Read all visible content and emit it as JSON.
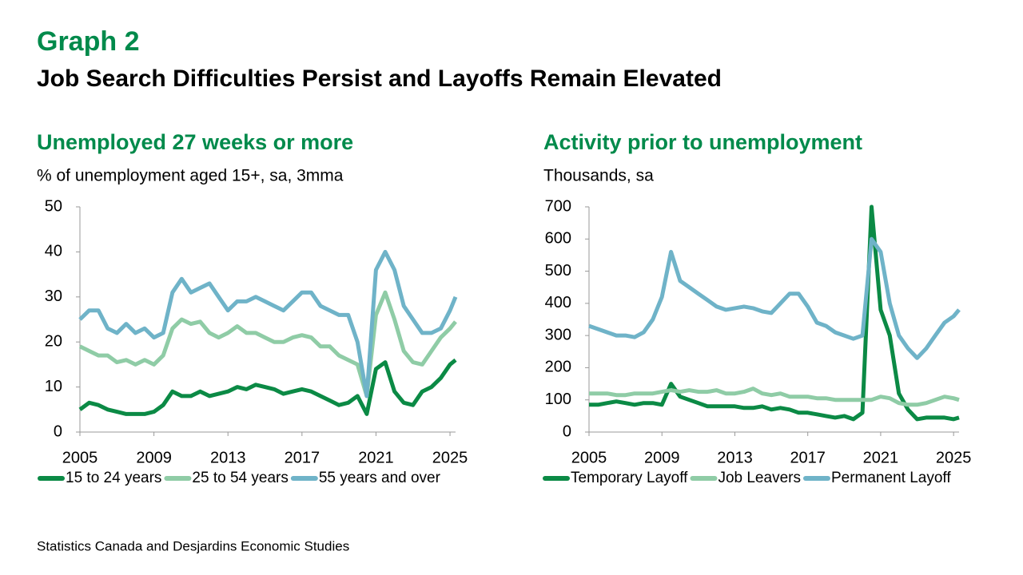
{
  "header": {
    "label": "Graph 2",
    "title": "Job Search Difficulties Persist and Layoffs Remain Elevated"
  },
  "footer": {
    "source": "Statistics Canada and Desjardins Economic Studies"
  },
  "chart_data": [
    {
      "type": "line",
      "title": "Unemployed 27 weeks or more",
      "subtitle": "% of unemployment aged 15+, sa, 3mma",
      "x": [
        2005,
        2005.5,
        2006,
        2006.5,
        2007,
        2007.5,
        2008,
        2008.5,
        2009,
        2009.5,
        2010,
        2010.5,
        2011,
        2011.5,
        2012,
        2012.5,
        2013,
        2013.5,
        2014,
        2014.5,
        2015,
        2015.5,
        2016,
        2016.5,
        2017,
        2017.5,
        2018,
        2018.5,
        2019,
        2019.5,
        2020,
        2020.5,
        2021,
        2021.5,
        2022,
        2022.5,
        2023,
        2023.5,
        2024,
        2024.5,
        2025,
        2025.3
      ],
      "xlim": [
        2005,
        2025.3
      ],
      "xticks": [
        2005,
        2009,
        2013,
        2017,
        2021,
        2025
      ],
      "ylim": [
        0,
        50
      ],
      "yticks": [
        0,
        10,
        20,
        30,
        40,
        50
      ],
      "series": [
        {
          "name": "15 to 24 years",
          "color": "#0b8a45",
          "values": [
            5,
            6.5,
            6,
            5,
            4.5,
            4,
            4,
            4,
            4.5,
            6,
            9,
            8,
            8,
            9,
            8,
            8.5,
            9,
            10,
            9.5,
            10.5,
            10,
            9.5,
            8.5,
            9,
            9.5,
            9,
            8,
            7,
            6,
            6.5,
            8,
            4,
            14,
            15.5,
            9,
            6.5,
            6,
            9,
            10,
            12,
            15,
            16
          ]
        },
        {
          "name": "25 to 54 years",
          "color": "#8fcca6",
          "values": [
            19,
            18,
            17,
            17,
            15.5,
            16,
            15,
            16,
            15,
            17,
            23,
            25,
            24,
            24.5,
            22,
            21,
            22,
            23.5,
            22,
            22,
            21,
            20,
            20,
            21,
            21.5,
            21,
            19,
            19,
            17,
            16,
            15,
            8,
            26,
            31,
            25,
            18,
            15.5,
            15,
            18,
            21,
            23,
            24.5
          ]
        },
        {
          "name": "55 years and over",
          "color": "#6fb3c8",
          "values": [
            25,
            27,
            27,
            23,
            22,
            24,
            22,
            23,
            21,
            22,
            31,
            34,
            31,
            32,
            33,
            30,
            27,
            29,
            29,
            30,
            29,
            28,
            27,
            29,
            31,
            31,
            28,
            27,
            26,
            26,
            20,
            8,
            36,
            40,
            36,
            28,
            25,
            22,
            22,
            23,
            27,
            30
          ]
        }
      ]
    },
    {
      "type": "line",
      "title": "Activity prior to unemployment",
      "subtitle": "Thousands, sa",
      "x": [
        2005,
        2005.5,
        2006,
        2006.5,
        2007,
        2007.5,
        2008,
        2008.5,
        2009,
        2009.5,
        2010,
        2010.5,
        2011,
        2011.5,
        2012,
        2012.5,
        2013,
        2013.5,
        2014,
        2014.5,
        2015,
        2015.5,
        2016,
        2016.5,
        2017,
        2017.5,
        2018,
        2018.5,
        2019,
        2019.5,
        2020,
        2020.5,
        2021,
        2021.5,
        2022,
        2022.5,
        2023,
        2023.5,
        2024,
        2024.5,
        2025,
        2025.3
      ],
      "xlim": [
        2005,
        2025.3
      ],
      "xticks": [
        2005,
        2009,
        2013,
        2017,
        2021,
        2025
      ],
      "ylim": [
        0,
        700
      ],
      "yticks": [
        0,
        100,
        200,
        300,
        400,
        500,
        600,
        700
      ],
      "series": [
        {
          "name": "Temporary Layoff",
          "color": "#0b8a45",
          "values": [
            85,
            85,
            90,
            95,
            90,
            85,
            90,
            90,
            85,
            150,
            110,
            100,
            90,
            80,
            80,
            80,
            80,
            75,
            75,
            80,
            70,
            75,
            70,
            60,
            60,
            55,
            50,
            45,
            50,
            40,
            60,
            700,
            380,
            300,
            120,
            70,
            40,
            45,
            45,
            45,
            40,
            45
          ]
        },
        {
          "name": "Job Leavers",
          "color": "#8fcca6",
          "values": [
            120,
            120,
            120,
            115,
            115,
            120,
            120,
            120,
            125,
            130,
            125,
            130,
            125,
            125,
            130,
            120,
            120,
            125,
            135,
            120,
            115,
            120,
            110,
            110,
            110,
            105,
            105,
            100,
            100,
            100,
            100,
            100,
            110,
            105,
            90,
            85,
            85,
            90,
            100,
            110,
            105,
            100
          ]
        },
        {
          "name": "Permanent Layoff",
          "color": "#6fb3c8",
          "values": [
            330,
            320,
            310,
            300,
            300,
            295,
            310,
            350,
            420,
            560,
            470,
            450,
            430,
            410,
            390,
            380,
            385,
            390,
            385,
            375,
            370,
            400,
            430,
            430,
            390,
            340,
            330,
            310,
            300,
            290,
            300,
            600,
            560,
            400,
            300,
            260,
            230,
            260,
            300,
            340,
            360,
            380
          ]
        }
      ]
    }
  ]
}
